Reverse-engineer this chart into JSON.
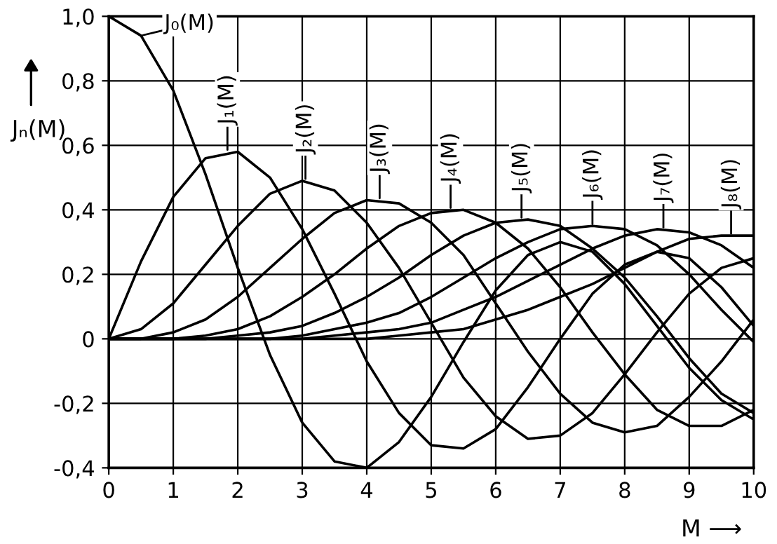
{
  "chart_data": {
    "type": "line",
    "xlabel": "M ⟶",
    "ylabel": "Jₙ(M)",
    "x": [
      0,
      0.5,
      1,
      1.5,
      2,
      2.5,
      3,
      3.5,
      4,
      4.5,
      5,
      5.5,
      6,
      6.5,
      7,
      7.5,
      8,
      8.5,
      9,
      9.5,
      10
    ],
    "series": [
      {
        "color": "#000000",
        "values": [
          1,
          0.94,
          0.77,
          0.51,
          0.22,
          -0.05,
          -0.26,
          -0.38,
          -0.4,
          -0.32,
          -0.18,
          -0.01,
          0.15,
          0.26,
          0.3,
          0.27,
          0.17,
          0.04,
          -0.09,
          -0.19,
          -0.25
        ]
      },
      {
        "color": "#000000",
        "values": [
          0,
          0.24,
          0.44,
          0.56,
          0.58,
          0.5,
          0.34,
          0.14,
          -0.07,
          -0.23,
          -0.33,
          -0.34,
          -0.28,
          -0.15,
          0.0,
          0.14,
          0.23,
          0.27,
          0.25,
          0.16,
          0.04
        ]
      },
      {
        "color": "#000000",
        "values": [
          0,
          0.03,
          0.11,
          0.23,
          0.35,
          0.45,
          0.49,
          0.46,
          0.36,
          0.22,
          0.05,
          -0.12,
          -0.24,
          -0.31,
          -0.3,
          -0.23,
          -0.11,
          0.02,
          0.14,
          0.22,
          0.25
        ]
      },
      {
        "color": "#000000",
        "values": [
          0,
          0.0,
          0.02,
          0.06,
          0.13,
          0.22,
          0.31,
          0.39,
          0.43,
          0.42,
          0.36,
          0.26,
          0.11,
          -0.04,
          -0.17,
          -0.26,
          -0.29,
          -0.27,
          -0.18,
          -0.07,
          0.06
        ]
      },
      {
        "color": "#000000",
        "values": [
          0,
          0,
          0.0,
          0.01,
          0.03,
          0.07,
          0.13,
          0.2,
          0.28,
          0.35,
          0.39,
          0.4,
          0.36,
          0.28,
          0.16,
          0.02,
          -0.11,
          -0.22,
          -0.27,
          -0.27,
          -0.22
        ]
      },
      {
        "color": "#000000",
        "values": [
          0,
          0,
          0,
          0.0,
          0.01,
          0.02,
          0.04,
          0.08,
          0.13,
          0.19,
          0.26,
          0.32,
          0.36,
          0.37,
          0.35,
          0.28,
          0.19,
          0.07,
          -0.06,
          -0.17,
          -0.23
        ]
      },
      {
        "color": "#000000",
        "values": [
          0,
          0,
          0,
          0,
          0.0,
          0.0,
          0.01,
          0.03,
          0.05,
          0.08,
          0.13,
          0.19,
          0.25,
          0.3,
          0.34,
          0.35,
          0.34,
          0.29,
          0.2,
          0.09,
          -0.01
        ]
      },
      {
        "color": "#000000",
        "values": [
          0,
          0,
          0,
          0,
          0,
          0.0,
          0.0,
          0.01,
          0.02,
          0.03,
          0.05,
          0.09,
          0.13,
          0.18,
          0.23,
          0.28,
          0.32,
          0.34,
          0.33,
          0.29,
          0.22
        ]
      },
      {
        "color": "#000000",
        "values": [
          0,
          0,
          0,
          0,
          0,
          0,
          0.0,
          0.0,
          0.0,
          0.01,
          0.02,
          0.03,
          0.06,
          0.09,
          0.13,
          0.17,
          0.22,
          0.27,
          0.31,
          0.32,
          0.32
        ]
      }
    ],
    "annotations": [
      {
        "text": "J₀(M)",
        "x": 0.5,
        "y": 0.94
      },
      {
        "text": "J₁(M)",
        "x": 1.84,
        "y": 0.58
      },
      {
        "text": "J₂(M)",
        "x": 3.05,
        "y": 0.49
      },
      {
        "text": "J₃(M)",
        "x": 4.2,
        "y": 0.43
      },
      {
        "text": "J₄(M)",
        "x": 5.3,
        "y": 0.4
      },
      {
        "text": "J₅(M)",
        "x": 6.4,
        "y": 0.37
      },
      {
        "text": "J₆(M)",
        "x": 7.5,
        "y": 0.35
      },
      {
        "text": "J₇(M)",
        "x": 8.6,
        "y": 0.34
      },
      {
        "text": "J₈(M)",
        "x": 9.65,
        "y": 0.32
      }
    ],
    "xlim": [
      0,
      10
    ],
    "xticks": [
      0,
      1,
      2,
      3,
      4,
      5,
      6,
      7,
      8,
      9,
      10
    ],
    "ylim": [
      -0.4,
      1.0
    ],
    "yticks": [
      {
        "value": -0.4,
        "label": "-0,4"
      },
      {
        "value": -0.2,
        "label": "-0,2"
      },
      0,
      {
        "value": 0.2,
        "label": "0,2"
      },
      {
        "value": 0.4,
        "label": "0,4"
      },
      {
        "value": 0.6,
        "label": "0,6"
      },
      {
        "value": 0.8,
        "label": "0,8"
      },
      {
        "value": 1.0,
        "label": "1,0"
      }
    ],
    "grid": true,
    "marker": "none",
    "line_style": "solid"
  }
}
